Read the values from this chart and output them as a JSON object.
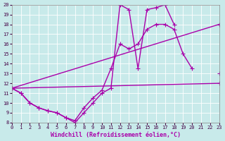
{
  "xlabel": "Windchill (Refroidissement éolien,°C)",
  "xlim": [
    0,
    23
  ],
  "ylim": [
    8,
    20
  ],
  "xticks": [
    0,
    1,
    2,
    3,
    4,
    5,
    6,
    7,
    8,
    9,
    10,
    11,
    12,
    13,
    14,
    15,
    16,
    17,
    18,
    19,
    20,
    21,
    22,
    23
  ],
  "yticks": [
    8,
    9,
    10,
    11,
    12,
    13,
    14,
    15,
    16,
    17,
    18,
    19,
    20
  ],
  "bg_color": "#c8eaea",
  "line_color": "#aa00aa",
  "grid_color": "#ffffff",
  "line1_x": [
    0,
    1,
    2,
    3,
    4,
    5,
    6,
    7,
    8,
    9,
    10,
    11,
    12,
    13,
    14,
    15,
    16,
    17,
    18,
    19,
    20,
    21,
    22,
    23
  ],
  "line1_y": [
    11.5,
    11.0,
    10.0,
    9.5,
    9.2,
    9.0,
    8.5,
    8.2,
    9.5,
    10.5,
    11.3,
    13.5,
    16.0,
    15.5,
    16.0,
    17.5,
    18.0,
    18.0,
    17.5,
    15.0,
    13.5,
    null,
    null,
    13.0
  ],
  "line2_x": [
    0,
    1,
    2,
    3,
    4,
    5,
    6,
    7,
    8,
    9,
    10,
    11,
    12,
    13,
    14,
    15,
    16,
    17,
    18,
    19,
    20,
    21,
    22,
    23
  ],
  "line2_y": [
    11.5,
    11.0,
    10.0,
    9.5,
    9.2,
    9.0,
    8.5,
    8.0,
    9.0,
    10.0,
    11.0,
    11.5,
    20.0,
    19.5,
    13.5,
    19.5,
    19.7,
    20.0,
    18.0,
    null,
    null,
    null,
    null,
    null
  ],
  "line3_x": [
    0,
    23
  ],
  "line3_y": [
    11.5,
    12.0
  ],
  "line4_x": [
    0,
    23
  ],
  "line4_y": [
    11.5,
    18.0
  ],
  "marker": "+",
  "markersize": 4,
  "linewidth": 1.0,
  "tick_fontsize": 5,
  "label_fontsize": 6
}
